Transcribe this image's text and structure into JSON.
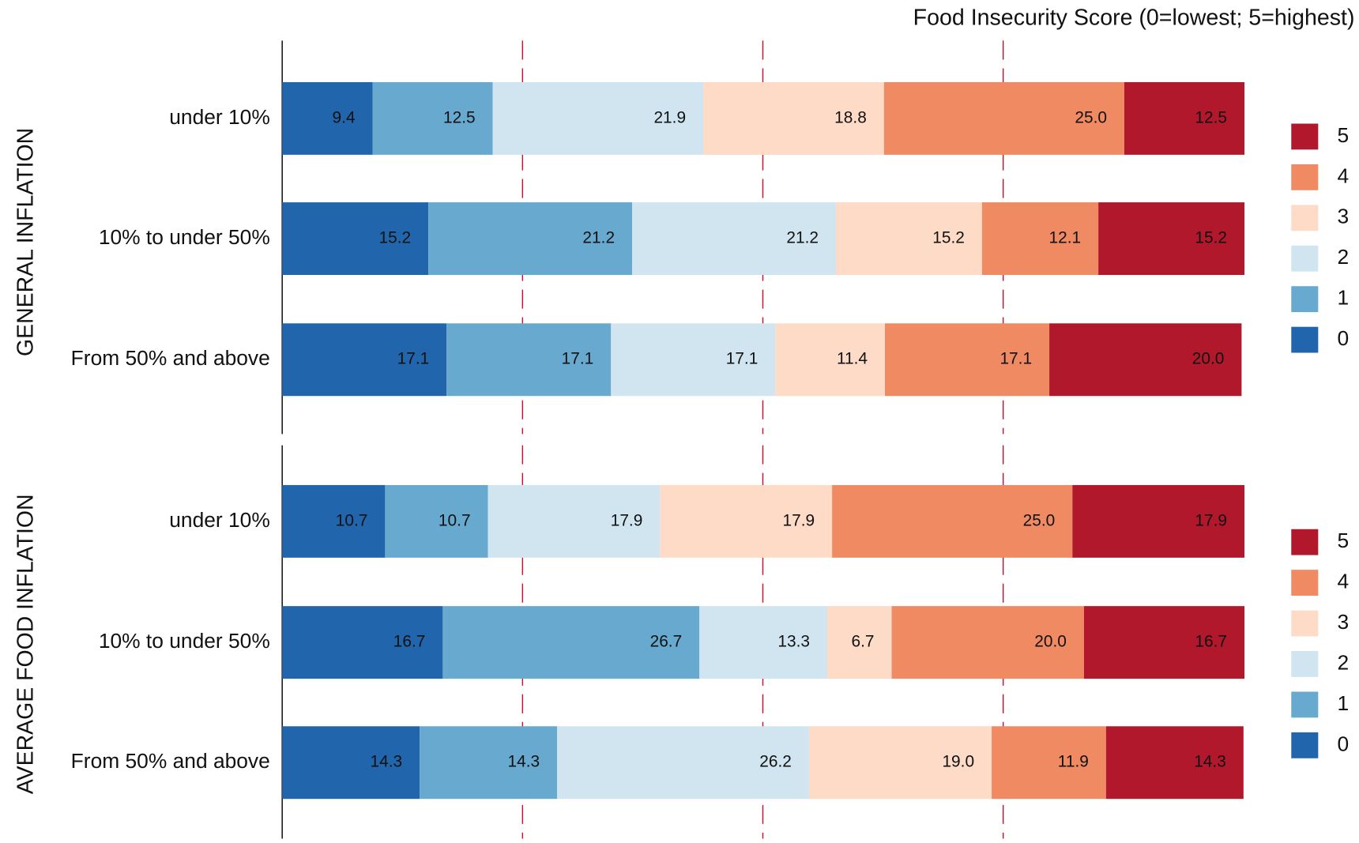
{
  "chart_data": [
    {
      "type": "bar",
      "orientation": "horizontal",
      "stacked": true,
      "title": "Food Insecurity Score (0=lowest; 5=highest)",
      "ylabel": "GENERAL INFLATION",
      "categories": [
        "under 10%",
        "10% to under 50%",
        "From 50% and above"
      ],
      "xlim": [
        0,
        100
      ],
      "xticks": [
        25,
        50,
        75
      ],
      "grid": true,
      "grid_style": "dashed",
      "legend": "right",
      "series": [
        {
          "name": "0",
          "color": "#2166ac",
          "values": [
            9.4,
            15.2,
            17.1
          ],
          "value_labels": [
            "9.4",
            "15.2",
            "17.1"
          ]
        },
        {
          "name": "1",
          "color": "#67a9cf",
          "values": [
            12.5,
            21.2,
            17.1
          ],
          "value_labels": [
            "12.5",
            "21.2",
            "17.1"
          ]
        },
        {
          "name": "2",
          "color": "#d1e5f0",
          "values": [
            21.9,
            21.2,
            17.1
          ],
          "value_labels": [
            "21.9",
            "21.2",
            "17.1"
          ]
        },
        {
          "name": "3",
          "color": "#fddbc7",
          "values": [
            18.8,
            15.2,
            11.4
          ],
          "value_labels": [
            "18.8",
            "15.2",
            "11.4"
          ]
        },
        {
          "name": "4",
          "color": "#ef8a62",
          "values": [
            25,
            12.1,
            17.1
          ],
          "value_labels": [
            "25.0",
            "12.1",
            "17.1"
          ]
        },
        {
          "name": "5",
          "color": "#b2182b",
          "values": [
            12.5,
            15.2,
            20
          ],
          "value_labels": [
            "12.5",
            "15.2",
            "20.0"
          ]
        }
      ]
    },
    {
      "type": "bar",
      "orientation": "horizontal",
      "stacked": true,
      "ylabel": "AVERAGE FOOD INFLATION",
      "categories": [
        "under 10%",
        "10% to under 50%",
        "From 50% and above"
      ],
      "xlim": [
        0,
        100
      ],
      "xticks": [
        25,
        50,
        75
      ],
      "grid": true,
      "grid_style": "dashed",
      "legend": "right",
      "series": [
        {
          "name": "0",
          "color": "#2166ac",
          "values": [
            10.7,
            16.7,
            14.3
          ],
          "value_labels": [
            "10.7",
            "16.7",
            "14.3"
          ]
        },
        {
          "name": "1",
          "color": "#67a9cf",
          "values": [
            10.7,
            26.7,
            14.3
          ],
          "value_labels": [
            "10.7",
            "26.7",
            "14.3"
          ]
        },
        {
          "name": "2",
          "color": "#d1e5f0",
          "values": [
            17.9,
            13.3,
            26.2
          ],
          "value_labels": [
            "17.9",
            "13.3",
            "26.2"
          ]
        },
        {
          "name": "3",
          "color": "#fddbc7",
          "values": [
            17.9,
            6.7,
            19
          ],
          "value_labels": [
            "17.9",
            "6.7",
            "19.0"
          ]
        },
        {
          "name": "4",
          "color": "#ef8a62",
          "values": [
            25,
            20,
            11.9
          ],
          "value_labels": [
            "25.0",
            "20.0",
            "11.9"
          ]
        },
        {
          "name": "5",
          "color": "#b2182b",
          "values": [
            17.9,
            16.7,
            14.3
          ],
          "value_labels": [
            "17.9",
            "16.7",
            "14.3"
          ]
        }
      ]
    }
  ]
}
